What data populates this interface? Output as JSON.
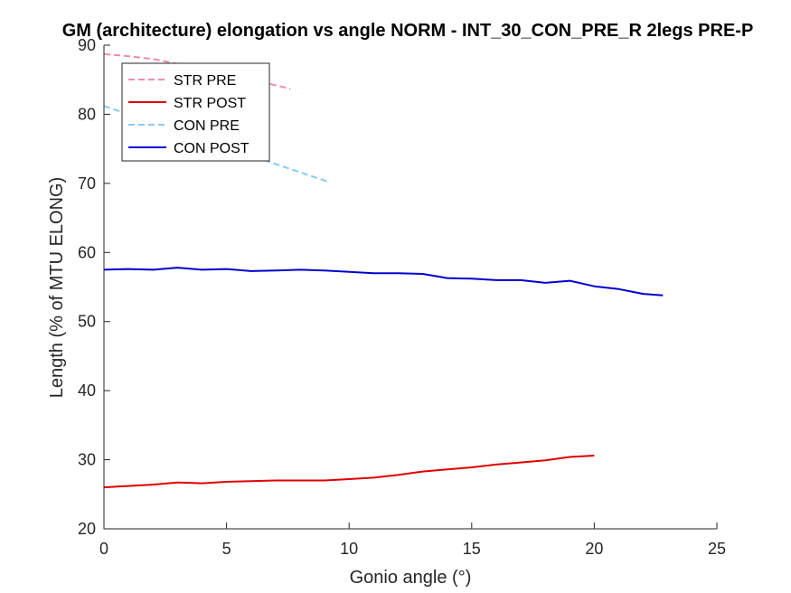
{
  "chart_data": {
    "type": "line",
    "title": "GM (architecture) elongation vs angle NORM - INT_30_CON_PRE_R 2legs PRE-P",
    "xlabel": "Gonio angle (°)",
    "ylabel": "Length (% of MTU ELONG)",
    "xlim": [
      0,
      25
    ],
    "ylim": [
      20,
      90
    ],
    "xticks": [
      0,
      5,
      10,
      15,
      20,
      25
    ],
    "yticks": [
      20,
      30,
      40,
      50,
      60,
      70,
      80,
      90
    ],
    "grid": false,
    "legend_position": "top-left",
    "series": [
      {
        "name": "STR PRE",
        "color": "#f08cb4",
        "style": "dashed",
        "x": [
          0,
          1,
          2,
          3,
          4,
          5,
          6,
          7,
          7.6
        ],
        "y": [
          88.7,
          88.4,
          88.0,
          87.3,
          86.5,
          85.8,
          85.0,
          84.2,
          83.7
        ]
      },
      {
        "name": "STR POST",
        "color": "#e00000",
        "style": "solid",
        "x": [
          0,
          1,
          2,
          3,
          4,
          5,
          6,
          7,
          8,
          9,
          10,
          11,
          12,
          13,
          14,
          15,
          16,
          17,
          18,
          19,
          20
        ],
        "y": [
          26.0,
          26.2,
          26.4,
          26.7,
          26.6,
          26.8,
          26.9,
          27.0,
          27.0,
          27.0,
          27.2,
          27.4,
          27.8,
          28.3,
          28.6,
          28.9,
          29.3,
          29.6,
          29.9,
          30.4,
          30.6
        ]
      },
      {
        "name": "CON PRE",
        "color": "#8ccaf0",
        "style": "dashed",
        "x": [
          0,
          1,
          2,
          3,
          4,
          5,
          6,
          7,
          8,
          9.1
        ],
        "y": [
          81.2,
          80.0,
          78.8,
          77.6,
          76.5,
          75.2,
          74.0,
          72.8,
          71.6,
          70.3
        ]
      },
      {
        "name": "CON POST",
        "color": "#0000d0",
        "style": "solid",
        "x": [
          0,
          1,
          2,
          3,
          4,
          5,
          6,
          7,
          8,
          9,
          10,
          11,
          12,
          13,
          14,
          15,
          16,
          17,
          18,
          19,
          20,
          21,
          22,
          22.8
        ],
        "y": [
          57.5,
          57.6,
          57.5,
          57.8,
          57.5,
          57.6,
          57.3,
          57.4,
          57.5,
          57.4,
          57.2,
          57.0,
          57.0,
          56.9,
          56.3,
          56.2,
          56.0,
          56.0,
          55.6,
          55.9,
          55.1,
          54.7,
          54.0,
          53.8
        ]
      }
    ]
  }
}
